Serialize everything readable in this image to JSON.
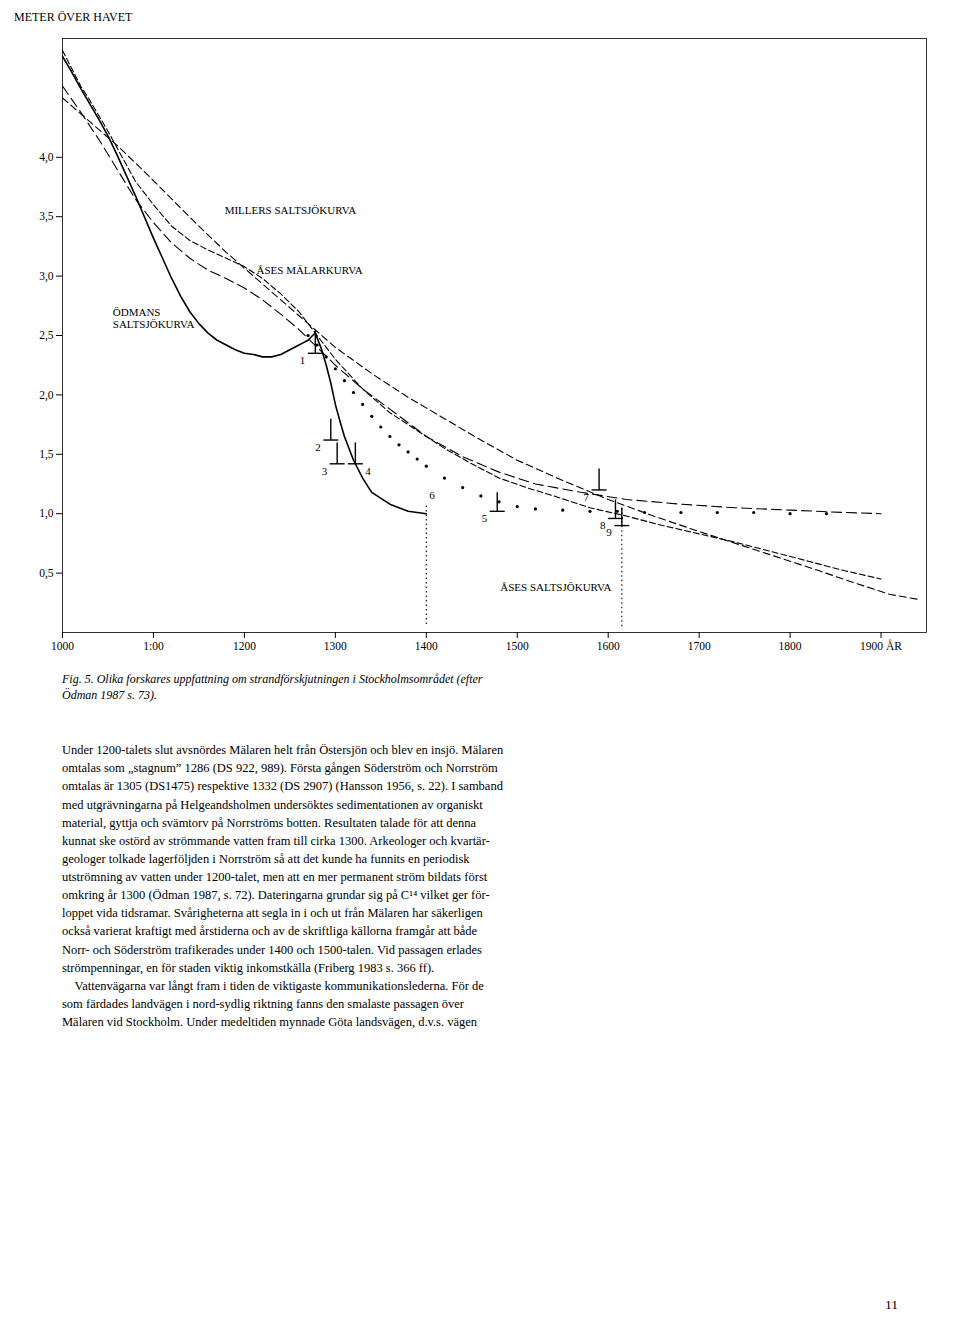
{
  "chart_data": {
    "type": "line",
    "title": "METER ÖVER HAVET",
    "xlim": [
      1000,
      1950
    ],
    "ylim": [
      0.0,
      5.0
    ],
    "xticks": [
      1000,
      {
        "value": 1100,
        "label": "1:00"
      },
      1200,
      1300,
      1400,
      1500,
      1600,
      1700,
      1800,
      {
        "value": 1900,
        "label": "1900 ÅR"
      }
    ],
    "yticks": [
      {
        "value": 0.5,
        "label": "0,5"
      },
      {
        "value": 1.0,
        "label": "1,0"
      },
      {
        "value": 1.5,
        "label": "1,5"
      },
      {
        "value": 2.0,
        "label": "2,0"
      },
      {
        "value": 2.5,
        "label": "2,5"
      },
      {
        "value": 3.0,
        "label": "3,0"
      },
      {
        "value": 3.5,
        "label": "3,5"
      },
      {
        "value": 4.0,
        "label": "4,0"
      }
    ],
    "grid": false,
    "series": [
      {
        "type": "line",
        "line_style": "dashed",
        "x": [
          1000,
          1010,
          1020,
          1030,
          1040,
          1050,
          1060,
          1080,
          1100,
          1120,
          1140,
          1160,
          1180,
          1200,
          1220,
          1240,
          1260,
          1280,
          1300,
          1330,
          1360,
          1390,
          1420,
          1450,
          1480,
          1510,
          1540,
          1580,
          1620,
          1660,
          1700,
          1740,
          1780,
          1820,
          1860,
          1900
        ],
        "values": [
          4.9,
          4.75,
          4.6,
          4.48,
          4.35,
          4.22,
          4.08,
          3.8,
          3.6,
          3.42,
          3.3,
          3.22,
          3.15,
          3.08,
          2.98,
          2.85,
          2.7,
          2.5,
          2.3,
          2.05,
          1.85,
          1.7,
          1.55,
          1.42,
          1.3,
          1.22,
          1.15,
          1.05,
          0.98,
          0.9,
          0.83,
          0.76,
          0.68,
          0.6,
          0.52,
          0.45
        ]
      },
      {
        "type": "line",
        "line_style": "long_dashed",
        "x": [
          1000,
          1020,
          1040,
          1060,
          1080,
          1100,
          1120,
          1140,
          1160,
          1180,
          1200,
          1220,
          1240,
          1260,
          1280,
          1300,
          1330,
          1360,
          1400,
          1440,
          1480,
          1520,
          1570,
          1620,
          1680,
          1740,
          1800,
          1860,
          1900
        ],
        "values": [
          4.6,
          4.38,
          4.15,
          3.9,
          3.65,
          3.45,
          3.28,
          3.15,
          3.05,
          2.98,
          2.9,
          2.8,
          2.68,
          2.55,
          2.4,
          2.25,
          2.05,
          1.88,
          1.65,
          1.48,
          1.35,
          1.25,
          1.18,
          1.12,
          1.08,
          1.05,
          1.03,
          1.01,
          1.0
        ]
      },
      {
        "type": "line",
        "line_style": "medium_dashed",
        "x": [
          1000,
          1030,
          1060,
          1090,
          1120,
          1150,
          1180,
          1210,
          1240,
          1270,
          1300,
          1340,
          1380,
          1420,
          1460,
          1500,
          1550,
          1600,
          1650,
          1700,
          1760,
          1820,
          1870,
          1910,
          1940
        ],
        "values": [
          4.5,
          4.3,
          4.1,
          3.88,
          3.65,
          3.42,
          3.2,
          3.0,
          2.8,
          2.6,
          2.4,
          2.18,
          1.98,
          1.8,
          1.62,
          1.45,
          1.28,
          1.12,
          0.98,
          0.85,
          0.7,
          0.55,
          0.42,
          0.32,
          0.28
        ]
      },
      {
        "type": "line",
        "line_style": "solid",
        "x": [
          1000,
          1010,
          1020,
          1030,
          1040,
          1050,
          1060,
          1070,
          1080,
          1090,
          1100,
          1110,
          1120,
          1130,
          1140,
          1150,
          1160,
          1170,
          1180,
          1190,
          1200,
          1210,
          1220,
          1230,
          1240,
          1250,
          1260,
          1265,
          1270,
          1275,
          1278
        ],
        "values": [
          4.85,
          4.72,
          4.58,
          4.45,
          4.32,
          4.18,
          4.02,
          3.85,
          3.68,
          3.5,
          3.32,
          3.15,
          2.98,
          2.83,
          2.7,
          2.6,
          2.52,
          2.46,
          2.42,
          2.38,
          2.35,
          2.34,
          2.32,
          2.32,
          2.34,
          2.38,
          2.42,
          2.44,
          2.46,
          2.5,
          2.52
        ]
      },
      {
        "type": "line",
        "line_style": "solid",
        "x": [
          1278,
          1280,
          1285,
          1290,
          1295,
          1300,
          1305,
          1310,
          1320,
          1330,
          1340,
          1360,
          1380,
          1400
        ],
        "values": [
          2.52,
          2.48,
          2.38,
          2.25,
          2.1,
          1.92,
          1.78,
          1.65,
          1.45,
          1.3,
          1.18,
          1.08,
          1.02,
          1.0
        ]
      },
      {
        "type": "scatter",
        "marker": "dot",
        "x": [
          1270,
          1280,
          1290,
          1300,
          1310,
          1320,
          1330,
          1340,
          1350,
          1360,
          1370,
          1380,
          1390,
          1400,
          1420,
          1440,
          1460,
          1480,
          1500,
          1520,
          1550,
          1580,
          1610,
          1640,
          1680,
          1720,
          1760,
          1800,
          1840
        ],
        "values": [
          2.5,
          2.42,
          2.32,
          2.22,
          2.12,
          2.02,
          1.92,
          1.82,
          1.73,
          1.65,
          1.58,
          1.52,
          1.46,
          1.4,
          1.3,
          1.22,
          1.15,
          1.1,
          1.06,
          1.04,
          1.03,
          1.02,
          1.02,
          1.01,
          1.01,
          1.01,
          1.01,
          1.0,
          1.0
        ]
      }
    ],
    "vertical_lines": [
      {
        "line_style": "dotted",
        "x": 1400,
        "y1": 1.07,
        "y2": 0.05
      },
      {
        "line_style": "dotted",
        "x": 1615,
        "y1": 1.05,
        "y2": 0.05
      }
    ],
    "markers": [
      {
        "label": "1",
        "x": 1278,
        "y_top": 2.55,
        "y_bot": 2.35
      },
      {
        "label": "2",
        "x": 1295,
        "y_top": 1.8,
        "y_bot": 1.62
      },
      {
        "label": "3",
        "x": 1302,
        "y_top": 1.6,
        "y_bot": 1.42
      },
      {
        "label": "4",
        "x": 1322,
        "y_top": 1.6,
        "y_bot": 1.42
      },
      {
        "label": "5",
        "x": 1478,
        "y_top": 1.18,
        "y_bot": 1.02
      },
      {
        "label": "7",
        "x": 1590,
        "y_top": 1.38,
        "y_bot": 1.2
      },
      {
        "label": "8",
        "x": 1608,
        "y_top": 1.12,
        "y_bot": 0.96
      },
      {
        "label": "9",
        "x": 1615,
        "y_top": 1.05,
        "y_bot": 0.9
      }
    ],
    "annotations": [
      {
        "text": "6",
        "x": 1400,
        "y": 1.12
      },
      {
        "text": "MILLERS SALTSJÖKURVA",
        "x": 1175,
        "y": 3.52
      },
      {
        "text": "ÅSES MÄLARKURVA",
        "x": 1210,
        "y": 3.02
      },
      {
        "text": "ÖDMANS\nSALTSJÖKURVA",
        "x": 1052,
        "y": 2.56
      },
      {
        "text": "ÅSES SALTSJÖKURVA",
        "x": 1478,
        "y": 0.35
      }
    ]
  },
  "caption": "Fig. 5. Olika forskares uppfattning om strandförskjutningen i Stockholmsområdet (efter\nÖdman 1987 s. 73).",
  "body_text": "Under 1200-talets slut avsnördes Mälaren helt från Östersjön och blev en insjö. Mälaren\nomtalas som „stagnum” 1286 (DS 922, 989). Första gången Söderström och Norrström\nomtalas är 1305 (DS1475) respektive 1332 (DS 2907) (Hansson 1956, s. 22). I samband\nmed utgrävningarna på Helgeandsholmen undersöktes sedimentationen av organiskt\nmaterial, gyttja och svämtorv på Norrströms botten. Resultaten talade för att denna\nkunnat ske ostörd av strömmande vatten fram till cirka 1300. Arkeologer och kvartär-\ngeologer tolkade lagerföljden i Norrström så att det kunde ha funnits en periodisk\nutströmning av vatten under 1200-talet, men att en mer permanent ström bildats först\nomkring år 1300 (Ödman 1987, s. 72). Dateringarna grundar sig på C¹⁴ vilket ger för-\nloppet vida tidsramar. Svårigheterna att segla in i och ut från Mälaren har säkerligen\nockså varierat kraftigt med årstiderna och av de skriftliga källorna framgår att både\nNorr- och Söderström trafikerades under 1400 och 1500-talen. Vid passagen erlades\nströmpenningar, en för staden viktig inkomstkälla (Friberg 1983 s. 366 ff).\n    Vattenvägarna var långt fram i tiden de viktigaste kommunikationslederna. För de\nsom färdades landvägen i nord-sydlig riktning fanns den smalaste passagen över\nMälaren vid Stockholm. Under medeltiden mynnade Göta landsvägen, d.v.s. vägen",
  "page_number": "11"
}
